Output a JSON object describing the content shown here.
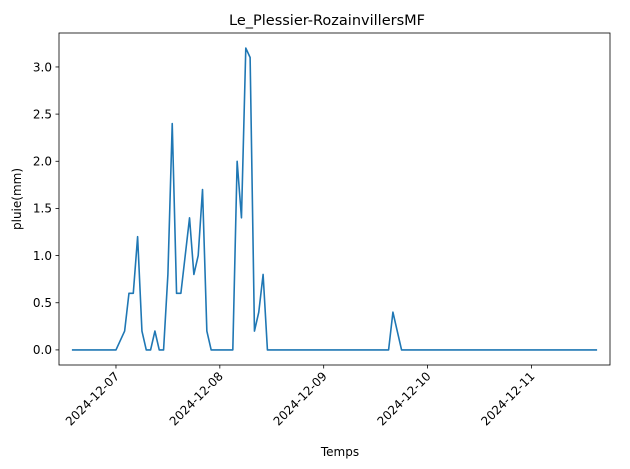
{
  "chart_data": {
    "type": "line",
    "title": "Le_Plessier-RozainvillersMF",
    "xlabel": "Temps",
    "ylabel": "pluie(mm)",
    "grid": false,
    "legend": "none",
    "x_ticks": [
      "2024-12-07",
      "2024-12-08",
      "2024-12-09",
      "2024-12-10",
      "2024-12-11"
    ],
    "y_ticks": [
      "0.0",
      "0.5",
      "1.0",
      "1.5",
      "2.0",
      "2.5",
      "3.0"
    ],
    "ylim": [
      -0.16,
      3.36
    ],
    "xlim": [
      "2024-12-06T10:50",
      "2024-12-11T18:10"
    ],
    "series": [
      {
        "color": "#1f77b4",
        "points": [
          [
            "2024-12-06T14:00",
            0.0
          ],
          [
            "2024-12-07T00:00",
            0.0
          ],
          [
            "2024-12-07T02:00",
            0.2
          ],
          [
            "2024-12-07T03:00",
            0.6
          ],
          [
            "2024-12-07T04:00",
            0.6
          ],
          [
            "2024-12-07T05:00",
            1.2
          ],
          [
            "2024-12-07T06:00",
            0.2
          ],
          [
            "2024-12-07T07:00",
            0.0
          ],
          [
            "2024-12-07T08:00",
            0.0
          ],
          [
            "2024-12-07T09:00",
            0.2
          ],
          [
            "2024-12-07T10:00",
            0.0
          ],
          [
            "2024-12-07T11:00",
            0.0
          ],
          [
            "2024-12-07T12:00",
            0.8
          ],
          [
            "2024-12-07T13:00",
            2.4
          ],
          [
            "2024-12-07T14:00",
            0.6
          ],
          [
            "2024-12-07T15:00",
            0.6
          ],
          [
            "2024-12-07T16:00",
            1.0
          ],
          [
            "2024-12-07T17:00",
            1.4
          ],
          [
            "2024-12-07T18:00",
            0.8
          ],
          [
            "2024-12-07T19:00",
            1.0
          ],
          [
            "2024-12-07T20:00",
            1.7
          ],
          [
            "2024-12-07T21:00",
            0.2
          ],
          [
            "2024-12-07T22:00",
            0.0
          ],
          [
            "2024-12-08T03:00",
            0.0
          ],
          [
            "2024-12-08T04:00",
            2.0
          ],
          [
            "2024-12-08T05:00",
            1.4
          ],
          [
            "2024-12-08T06:00",
            3.2
          ],
          [
            "2024-12-08T07:00",
            3.1
          ],
          [
            "2024-12-08T08:00",
            0.2
          ],
          [
            "2024-12-08T09:00",
            0.4
          ],
          [
            "2024-12-08T10:00",
            0.8
          ],
          [
            "2024-12-08T11:00",
            0.0
          ],
          [
            "2024-12-09T15:00",
            0.0
          ],
          [
            "2024-12-09T16:00",
            0.4
          ],
          [
            "2024-12-09T18:00",
            0.0
          ],
          [
            "2024-12-11T15:00",
            0.0
          ]
        ]
      }
    ]
  }
}
